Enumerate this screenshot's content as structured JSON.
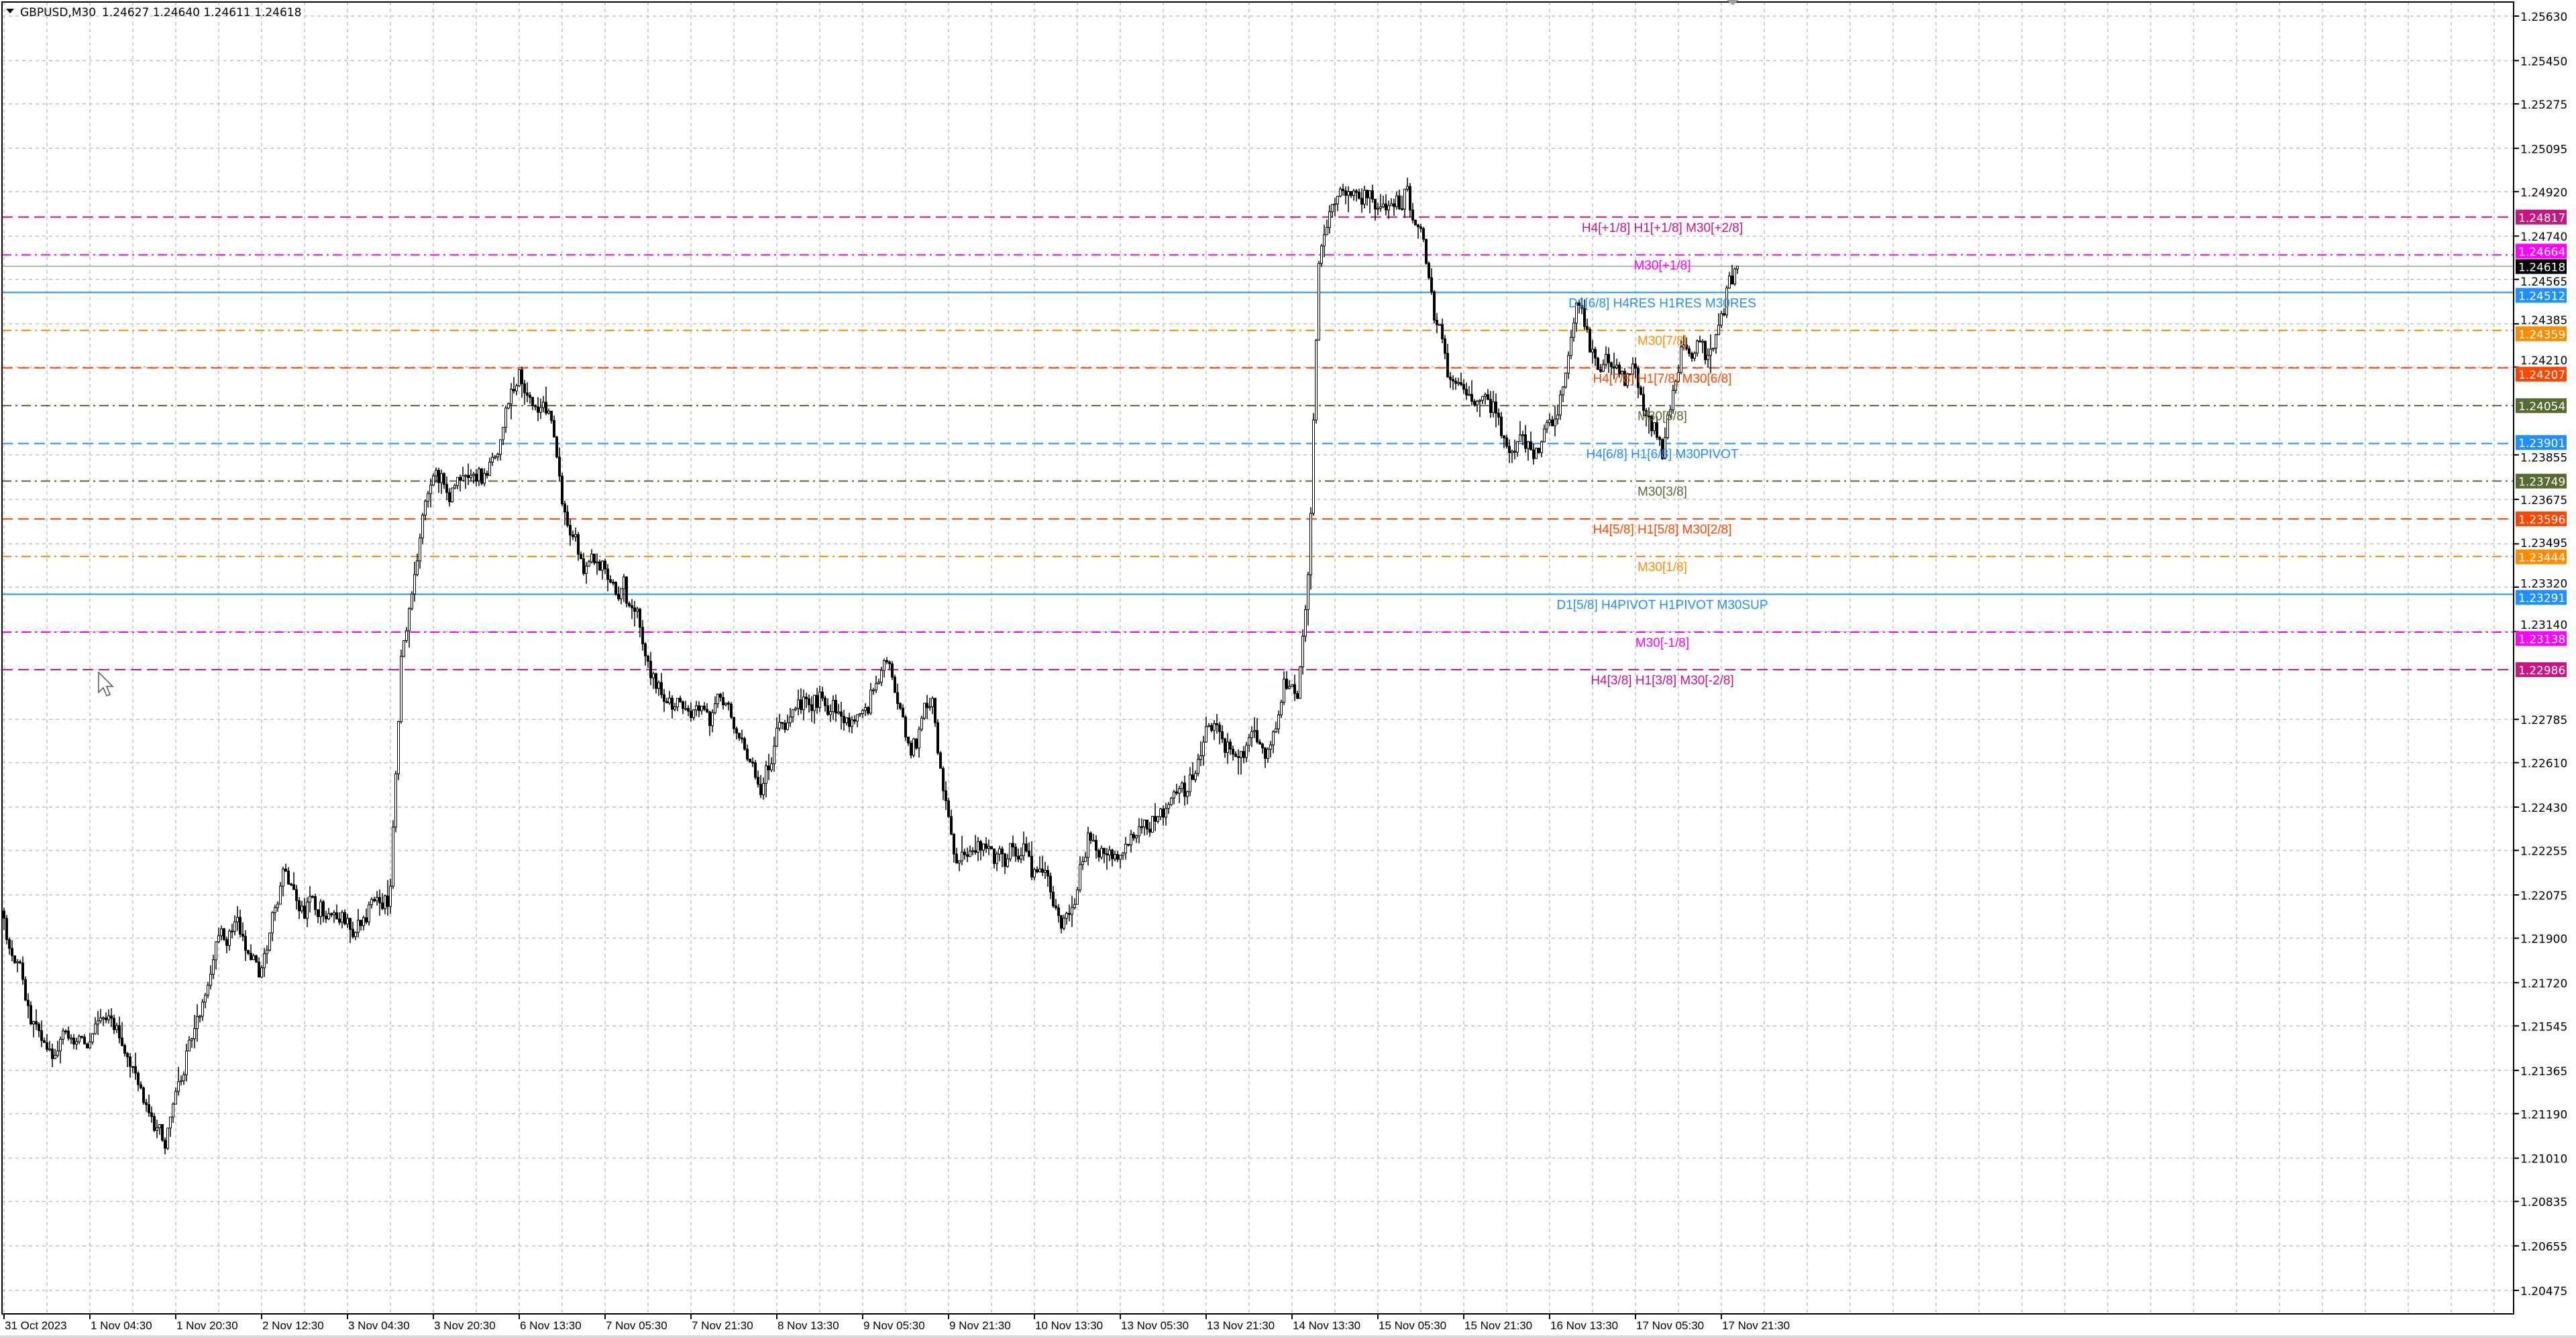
{
  "header": {
    "symbol_timeframe": "GBPUSD,M30",
    "ohlc": "1.24627 1.24640 1.24611 1.24618",
    "menu_icon": "triangle-down-icon"
  },
  "chart_data": {
    "type": "candlestick",
    "symbol": "GBPUSD",
    "timeframe": "M30",
    "ylim": [
      1.2038,
      1.2568
    ],
    "grid": true,
    "colors": {
      "bull_body": "#ffffff",
      "bear_body": "#000000",
      "wick": "#000000",
      "grid": "#c0c0c0"
    },
    "current_price": 1.24618,
    "price_ticks": [
      "1.25630",
      "1.25450",
      "1.25275",
      "1.25095",
      "1.24920",
      "1.24740",
      "1.24565",
      "1.24385",
      "1.24210",
      "1.23855",
      "1.23675",
      "1.23495",
      "1.23320",
      "1.23140",
      "1.22785",
      "1.22610",
      "1.22430",
      "1.22255",
      "1.22075",
      "1.21900",
      "1.21720",
      "1.21545",
      "1.21365",
      "1.21190",
      "1.21010",
      "1.20835",
      "1.20655",
      "1.20475"
    ],
    "time_labels": [
      "31 Oct 2023",
      "1 Nov 04:30",
      "1 Nov 20:30",
      "2 Nov 12:30",
      "3 Nov 04:30",
      "3 Nov 20:30",
      "6 Nov 13:30",
      "7 Nov 05:30",
      "7 Nov 21:30",
      "8 Nov 13:30",
      "9 Nov 05:30",
      "9 Nov 21:30",
      "10 Nov 13:30",
      "13 Nov 05:30",
      "13 Nov 21:30",
      "14 Nov 13:30",
      "15 Nov 05:30",
      "15 Nov 21:30",
      "16 Nov 13:30",
      "17 Nov 05:30",
      "17 Nov 21:30"
    ],
    "price_path": [
      {
        "t": "31 Oct 12:30",
        "price": 1.2198
      },
      {
        "t": "31 Oct 20:30",
        "price": 1.2145
      },
      {
        "t": "1 Nov 04:30",
        "price": 1.2148
      },
      {
        "t": "1 Nov 12:30",
        "price": 1.2138
      },
      {
        "t": "1 Nov 18:30",
        "price": 1.2105
      },
      {
        "t": "1 Nov 20:30",
        "price": 1.2128
      },
      {
        "t": "2 Nov 04:30",
        "price": 1.2191
      },
      {
        "t": "2 Nov 12:30",
        "price": 1.2178
      },
      {
        "t": "2 Nov 16:30",
        "price": 1.2218
      },
      {
        "t": "2 Nov 20:30",
        "price": 1.2198
      },
      {
        "t": "3 Nov 04:30",
        "price": 1.2198
      },
      {
        "t": "3 Nov 12:30",
        "price": 1.2211
      },
      {
        "t": "3 Nov 14:30",
        "price": 1.2304
      },
      {
        "t": "3 Nov 20:30",
        "price": 1.2377
      },
      {
        "t": "6 Nov 05:30",
        "price": 1.2374
      },
      {
        "t": "6 Nov 12:30",
        "price": 1.242
      },
      {
        "t": "6 Nov 21:30",
        "price": 1.2357
      },
      {
        "t": "7 Nov 05:30",
        "price": 1.2334
      },
      {
        "t": "7 Nov 13:30",
        "price": 1.2297
      },
      {
        "t": "7 Nov 21:30",
        "price": 1.2284
      },
      {
        "t": "8 Nov 05:30",
        "price": 1.2271
      },
      {
        "t": "8 Nov 09:30",
        "price": 1.2248
      },
      {
        "t": "8 Nov 13:30",
        "price": 1.2277
      },
      {
        "t": "8 Nov 21:30",
        "price": 1.2284
      },
      {
        "t": "9 Nov 05:30",
        "price": 1.2281
      },
      {
        "t": "9 Nov 09:30",
        "price": 1.2301
      },
      {
        "t": "9 Nov 13:30",
        "price": 1.2264
      },
      {
        "t": "9 Nov 17:30",
        "price": 1.2287
      },
      {
        "t": "9 Nov 21:30",
        "price": 1.2224
      },
      {
        "t": "10 Nov 05:30",
        "price": 1.2224
      },
      {
        "t": "10 Nov 13:30",
        "price": 1.2218
      },
      {
        "t": "10 Nov 17:30",
        "price": 1.2194
      },
      {
        "t": "10 Nov 21:30",
        "price": 1.2221
      },
      {
        "t": "13 Nov 05:30",
        "price": 1.2228
      },
      {
        "t": "13 Nov 13:30",
        "price": 1.2244
      },
      {
        "t": "13 Nov 21:30",
        "price": 1.2274
      },
      {
        "t": "14 Nov 05:30",
        "price": 1.2274
      },
      {
        "t": "14 Nov 11:30",
        "price": 1.2291
      },
      {
        "t": "14 Nov 13:30",
        "price": 1.2287
      },
      {
        "t": "14 Nov 15:30",
        "price": 1.2337
      },
      {
        "t": "14 Nov 17:30",
        "price": 1.2463
      },
      {
        "t": "14 Nov 21:30",
        "price": 1.2493
      },
      {
        "t": "15 Nov 05:30",
        "price": 1.2487
      },
      {
        "t": "15 Nov 09:30",
        "price": 1.2493
      },
      {
        "t": "15 Nov 13:30",
        "price": 1.2463
      },
      {
        "t": "15 Nov 17:30",
        "price": 1.2417
      },
      {
        "t": "15 Nov 21:30",
        "price": 1.241
      },
      {
        "t": "16 Nov 05:30",
        "price": 1.2387
      },
      {
        "t": "16 Nov 09:30",
        "price": 1.2384
      },
      {
        "t": "16 Nov 13:30",
        "price": 1.24
      },
      {
        "t": "16 Nov 17:30",
        "price": 1.2447
      },
      {
        "t": "16 Nov 21:30",
        "price": 1.242
      },
      {
        "t": "17 Nov 05:30",
        "price": 1.241
      },
      {
        "t": "17 Nov 09:30",
        "price": 1.2384
      },
      {
        "t": "17 Nov 13:30",
        "price": 1.243
      },
      {
        "t": "17 Nov 17:30",
        "price": 1.2424
      },
      {
        "t": "17 Nov 21:30",
        "price": 1.2453
      },
      {
        "t": "17 Nov 23:30",
        "price": 1.24618
      }
    ],
    "levels": [
      {
        "price": 1.24817,
        "badge": "1.24817",
        "label": "H4[+1/8] H1[+1/8] M30[+2/8]",
        "color": "#C71585",
        "style": "dash"
      },
      {
        "price": 1.24664,
        "badge": "1.24664",
        "label": "M30[+1/8]",
        "color": "#FF00FF",
        "style": "dashdot"
      },
      {
        "price": 1.24512,
        "badge": "1.24512",
        "label": "D1[6/8] H4RES H1RES M30RES",
        "color": "#1E90FF",
        "style": "solid"
      },
      {
        "price": 1.24359,
        "badge": "1.24359",
        "label": "M30[7/8]",
        "color": "#FF8C00",
        "style": "dashdot"
      },
      {
        "price": 1.24207,
        "badge": "1.24207",
        "label": "H4[7/8] H1[7/8] M30[6/8]",
        "color": "#FF4500",
        "style": "dash"
      },
      {
        "price": 1.24054,
        "badge": "1.24054",
        "label": "M30[5/8]",
        "color": "#556B2F",
        "style": "dashdot"
      },
      {
        "price": 1.23901,
        "badge": "1.23901",
        "label": "H4[6/8] H1[6/8] M30PIVOT",
        "color": "#1E90FF",
        "style": "dash"
      },
      {
        "price": 1.23749,
        "badge": "1.23749",
        "label": "M30[3/8]",
        "color": "#556B2F",
        "style": "dashdot"
      },
      {
        "price": 1.23596,
        "badge": "1.23596",
        "label": "H4[5/8] H1[5/8] M30[2/8]",
        "color": "#FF4500",
        "style": "dash"
      },
      {
        "price": 1.23444,
        "badge": "1.23444",
        "label": "M30[1/8]",
        "color": "#FF8C00",
        "style": "dashdot"
      },
      {
        "price": 1.23291,
        "badge": "1.23291",
        "label": "D1[5/8] H4PIVOT H1PIVOT M30SUP",
        "color": "#1E90FF",
        "style": "solid"
      },
      {
        "price": 1.23138,
        "badge": "1.23138",
        "label": "M30[-1/8]",
        "color": "#FF00FF",
        "style": "dashdot"
      },
      {
        "price": 1.22986,
        "badge": "1.22986",
        "label": "H4[3/8] H1[3/8] M30[-2/8]",
        "color": "#C71585",
        "style": "dash"
      }
    ],
    "current_badge": "1.24618"
  }
}
